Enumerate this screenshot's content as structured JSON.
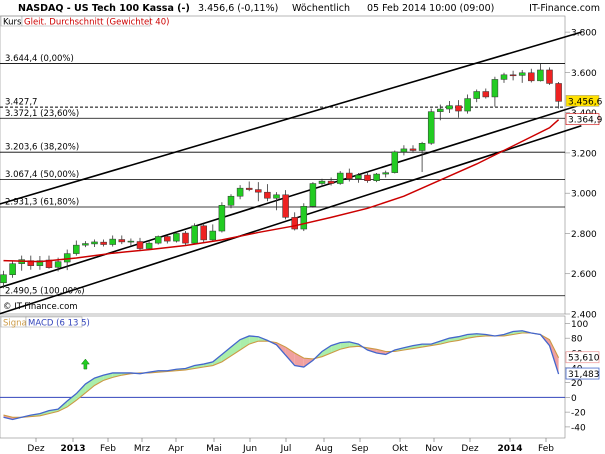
{
  "header": {
    "symbol": "NASDAQ - US Tech 100 Kassa (-)",
    "quote": "3.456,6 (-0,11%)",
    "period": "Wöchentlich",
    "datetime": "05 Feb 2014 10:00 (09:00)",
    "brand": "IT-Finance.com"
  },
  "legend": {
    "kurs": "Kurs",
    "ma": "Gleit. Durchschnitt (Gewichtet 40)"
  },
  "watermark": "© IT-Finance.com",
  "colors": {
    "up": "#22cc22",
    "down": "#ee2222",
    "ma": "#cc0000",
    "macd": "#4466cc",
    "signal": "#cc9944",
    "fill_up": "#aaeeaa",
    "fill_down": "#f0a0a0",
    "zero_line": "#3344bb",
    "last_price_box": "#ffe000",
    "ma_box": "#ffffff"
  },
  "chart_data": [
    {
      "type": "candlestick",
      "title": "NASDAQ - US Tech 100 Kassa (-)",
      "ylim": [
        2400,
        3880
      ],
      "y_ticks": [
        2400,
        2600,
        2800,
        3000,
        3200,
        3400,
        3600,
        3800
      ],
      "y_tick_labels": [
        "2.400",
        "2.600",
        "2.800",
        "3.000",
        "3.200",
        "3.400",
        "3.600",
        "3.800"
      ],
      "x_labels": [
        "Dez",
        "2013",
        "Feb",
        "Mrz",
        "Apr",
        "Mai",
        "Jun",
        "Jul",
        "Aug",
        "Sep",
        "Okt",
        "Nov",
        "Dez",
        "2014",
        "Feb"
      ],
      "candles": [
        {
          "o": 2555,
          "h": 2615,
          "l": 2528,
          "c": 2595
        },
        {
          "o": 2595,
          "h": 2665,
          "l": 2580,
          "c": 2650
        },
        {
          "o": 2650,
          "h": 2690,
          "l": 2615,
          "c": 2670
        },
        {
          "o": 2665,
          "h": 2690,
          "l": 2620,
          "c": 2640
        },
        {
          "o": 2640,
          "h": 2688,
          "l": 2620,
          "c": 2665
        },
        {
          "o": 2668,
          "h": 2690,
          "l": 2625,
          "c": 2630
        },
        {
          "o": 2632,
          "h": 2680,
          "l": 2612,
          "c": 2660
        },
        {
          "o": 2658,
          "h": 2720,
          "l": 2618,
          "c": 2700
        },
        {
          "o": 2700,
          "h": 2765,
          "l": 2690,
          "c": 2742
        },
        {
          "o": 2742,
          "h": 2762,
          "l": 2732,
          "c": 2750
        },
        {
          "o": 2748,
          "h": 2770,
          "l": 2733,
          "c": 2758
        },
        {
          "o": 2757,
          "h": 2770,
          "l": 2735,
          "c": 2745
        },
        {
          "o": 2745,
          "h": 2790,
          "l": 2735,
          "c": 2772
        },
        {
          "o": 2770,
          "h": 2790,
          "l": 2747,
          "c": 2758
        },
        {
          "o": 2758,
          "h": 2775,
          "l": 2738,
          "c": 2762
        },
        {
          "o": 2760,
          "h": 2778,
          "l": 2712,
          "c": 2725
        },
        {
          "o": 2725,
          "h": 2765,
          "l": 2718,
          "c": 2752
        },
        {
          "o": 2752,
          "h": 2790,
          "l": 2745,
          "c": 2785
        },
        {
          "o": 2785,
          "h": 2790,
          "l": 2750,
          "c": 2762
        },
        {
          "o": 2762,
          "h": 2808,
          "l": 2755,
          "c": 2800
        },
        {
          "o": 2802,
          "h": 2812,
          "l": 2742,
          "c": 2752
        },
        {
          "o": 2752,
          "h": 2850,
          "l": 2745,
          "c": 2838
        },
        {
          "o": 2838,
          "h": 2848,
          "l": 2755,
          "c": 2768
        },
        {
          "o": 2768,
          "h": 2845,
          "l": 2762,
          "c": 2812
        },
        {
          "o": 2812,
          "h": 2955,
          "l": 2805,
          "c": 2940
        },
        {
          "o": 2940,
          "h": 2995,
          "l": 2925,
          "c": 2985
        },
        {
          "o": 2985,
          "h": 3040,
          "l": 2970,
          "c": 3025
        },
        {
          "o": 3025,
          "h": 3058,
          "l": 3010,
          "c": 3018
        },
        {
          "o": 3018,
          "h": 3055,
          "l": 2960,
          "c": 3005
        },
        {
          "o": 3005,
          "h": 3045,
          "l": 2960,
          "c": 2975
        },
        {
          "o": 2975,
          "h": 3005,
          "l": 2915,
          "c": 2992
        },
        {
          "o": 2992,
          "h": 3015,
          "l": 2870,
          "c": 2880
        },
        {
          "o": 2880,
          "h": 2905,
          "l": 2815,
          "c": 2822
        },
        {
          "o": 2822,
          "h": 2950,
          "l": 2812,
          "c": 2935
        },
        {
          "o": 2935,
          "h": 3055,
          "l": 2928,
          "c": 3048
        },
        {
          "o": 3048,
          "h": 3072,
          "l": 3032,
          "c": 3060
        },
        {
          "o": 3060,
          "h": 3078,
          "l": 3038,
          "c": 3048
        },
        {
          "o": 3048,
          "h": 3110,
          "l": 3042,
          "c": 3100
        },
        {
          "o": 3100,
          "h": 3122,
          "l": 3058,
          "c": 3072
        },
        {
          "o": 3072,
          "h": 3100,
          "l": 3052,
          "c": 3090
        },
        {
          "o": 3090,
          "h": 3110,
          "l": 3052,
          "c": 3062
        },
        {
          "o": 3062,
          "h": 3100,
          "l": 3055,
          "c": 3095
        },
        {
          "o": 3095,
          "h": 3112,
          "l": 3078,
          "c": 3102
        },
        {
          "o": 3102,
          "h": 3212,
          "l": 3098,
          "c": 3205
        },
        {
          "o": 3205,
          "h": 3238,
          "l": 3188,
          "c": 3220
        },
        {
          "o": 3220,
          "h": 3238,
          "l": 3200,
          "c": 3212
        },
        {
          "o": 3212,
          "h": 3255,
          "l": 3105,
          "c": 3248
        },
        {
          "o": 3248,
          "h": 3420,
          "l": 3240,
          "c": 3405
        },
        {
          "o": 3405,
          "h": 3440,
          "l": 3362,
          "c": 3418
        },
        {
          "o": 3418,
          "h": 3458,
          "l": 3398,
          "c": 3435
        },
        {
          "o": 3435,
          "h": 3462,
          "l": 3375,
          "c": 3408
        },
        {
          "o": 3408,
          "h": 3490,
          "l": 3395,
          "c": 3470
        },
        {
          "o": 3470,
          "h": 3515,
          "l": 3452,
          "c": 3505
        },
        {
          "o": 3505,
          "h": 3520,
          "l": 3470,
          "c": 3478
        },
        {
          "o": 3478,
          "h": 3578,
          "l": 3430,
          "c": 3565
        },
        {
          "o": 3565,
          "h": 3598,
          "l": 3548,
          "c": 3588
        },
        {
          "o": 3588,
          "h": 3608,
          "l": 3560,
          "c": 3585
        },
        {
          "o": 3585,
          "h": 3612,
          "l": 3548,
          "c": 3598
        },
        {
          "o": 3598,
          "h": 3618,
          "l": 3550,
          "c": 3558
        },
        {
          "o": 3558,
          "h": 3645,
          "l": 3555,
          "c": 3612
        },
        {
          "o": 3612,
          "h": 3625,
          "l": 3538,
          "c": 3545
        },
        {
          "o": 3545,
          "h": 3552,
          "l": 3420,
          "c": 3456
        }
      ],
      "moving_average": [
        {
          "i": 0,
          "v": 2665
        },
        {
          "i": 4,
          "v": 2660
        },
        {
          "i": 8,
          "v": 2678
        },
        {
          "i": 12,
          "v": 2702
        },
        {
          "i": 16,
          "v": 2720
        },
        {
          "i": 20,
          "v": 2740
        },
        {
          "i": 24,
          "v": 2768
        },
        {
          "i": 28,
          "v": 2805
        },
        {
          "i": 32,
          "v": 2838
        },
        {
          "i": 36,
          "v": 2880
        },
        {
          "i": 40,
          "v": 2925
        },
        {
          "i": 44,
          "v": 2985
        },
        {
          "i": 48,
          "v": 3065
        },
        {
          "i": 52,
          "v": 3145
        },
        {
          "i": 56,
          "v": 3235
        },
        {
          "i": 60,
          "v": 3325
        },
        {
          "i": 61,
          "v": 3364.9
        }
      ],
      "fibonacci": [
        {
          "label": "3.644,4 (0,00%)",
          "value": 3644.4
        },
        {
          "label": "3.427,7",
          "value": 3427.7
        },
        {
          "label": "3.372,1 (23,60%)",
          "value": 3372.1
        },
        {
          "label": "3.203,6 (38,20%)",
          "value": 3203.6
        },
        {
          "label": "3.067,4 (50,00%)",
          "value": 3067.4
        },
        {
          "label": "2.931,3 (61,80%)",
          "value": 2931.3
        },
        {
          "label": "2.490,5 (100,00%)",
          "value": 2490.5
        }
      ],
      "channel": {
        "upper": [
          [
            -0.5,
            2945
          ],
          [
            63.5,
            3800
          ]
        ],
        "lower": [
          [
            -0.5,
            2400
          ],
          [
            63.5,
            3335
          ]
        ],
        "middle": [
          [
            -0.5,
            2530
          ],
          [
            63.5,
            3440
          ]
        ]
      },
      "last_price_label": "3.456,6",
      "ma_label": "3.364,9"
    },
    {
      "type": "line",
      "title": "MACD (6 13 5)",
      "series_names": [
        "Signal",
        "MACD (6 13 5)"
      ],
      "ylim": [
        -55,
        110
      ],
      "y_ticks": [
        -40,
        -20,
        0,
        20,
        40,
        60,
        80,
        100
      ],
      "y_tick_labels": [
        "-40",
        "-20",
        "0",
        "20",
        "40",
        "60",
        "80",
        "100"
      ],
      "macd": [
        -27,
        -30,
        -27,
        -24,
        -22,
        -18,
        -16,
        -5,
        5,
        18,
        26,
        30,
        33,
        33,
        33,
        32,
        34,
        36,
        36,
        38,
        39,
        43,
        45,
        48,
        58,
        68,
        78,
        83,
        82,
        77,
        71,
        57,
        43,
        41,
        50,
        62,
        70,
        74,
        75,
        72,
        64,
        60,
        58,
        64,
        67,
        70,
        72,
        72,
        76,
        80,
        82,
        85,
        86,
        85,
        83,
        85,
        89,
        90,
        87,
        85,
        70,
        31.5
      ],
      "signal": [
        -24,
        -27,
        -27,
        -26,
        -25,
        -22,
        -19,
        -13,
        -4,
        6,
        16,
        23,
        27,
        30,
        32,
        33,
        33,
        34,
        35,
        36,
        37,
        39,
        41,
        43,
        48,
        56,
        64,
        72,
        76,
        76,
        74,
        68,
        60,
        53,
        52,
        55,
        60,
        65,
        68,
        69,
        67,
        65,
        62,
        62,
        64,
        66,
        68,
        70,
        72,
        75,
        77,
        80,
        82,
        83,
        83,
        83,
        85,
        87,
        87,
        85,
        78,
        53.6
      ],
      "signal_label": "53,610",
      "macd_label": "31,483",
      "buy_signal_index": 9
    }
  ]
}
